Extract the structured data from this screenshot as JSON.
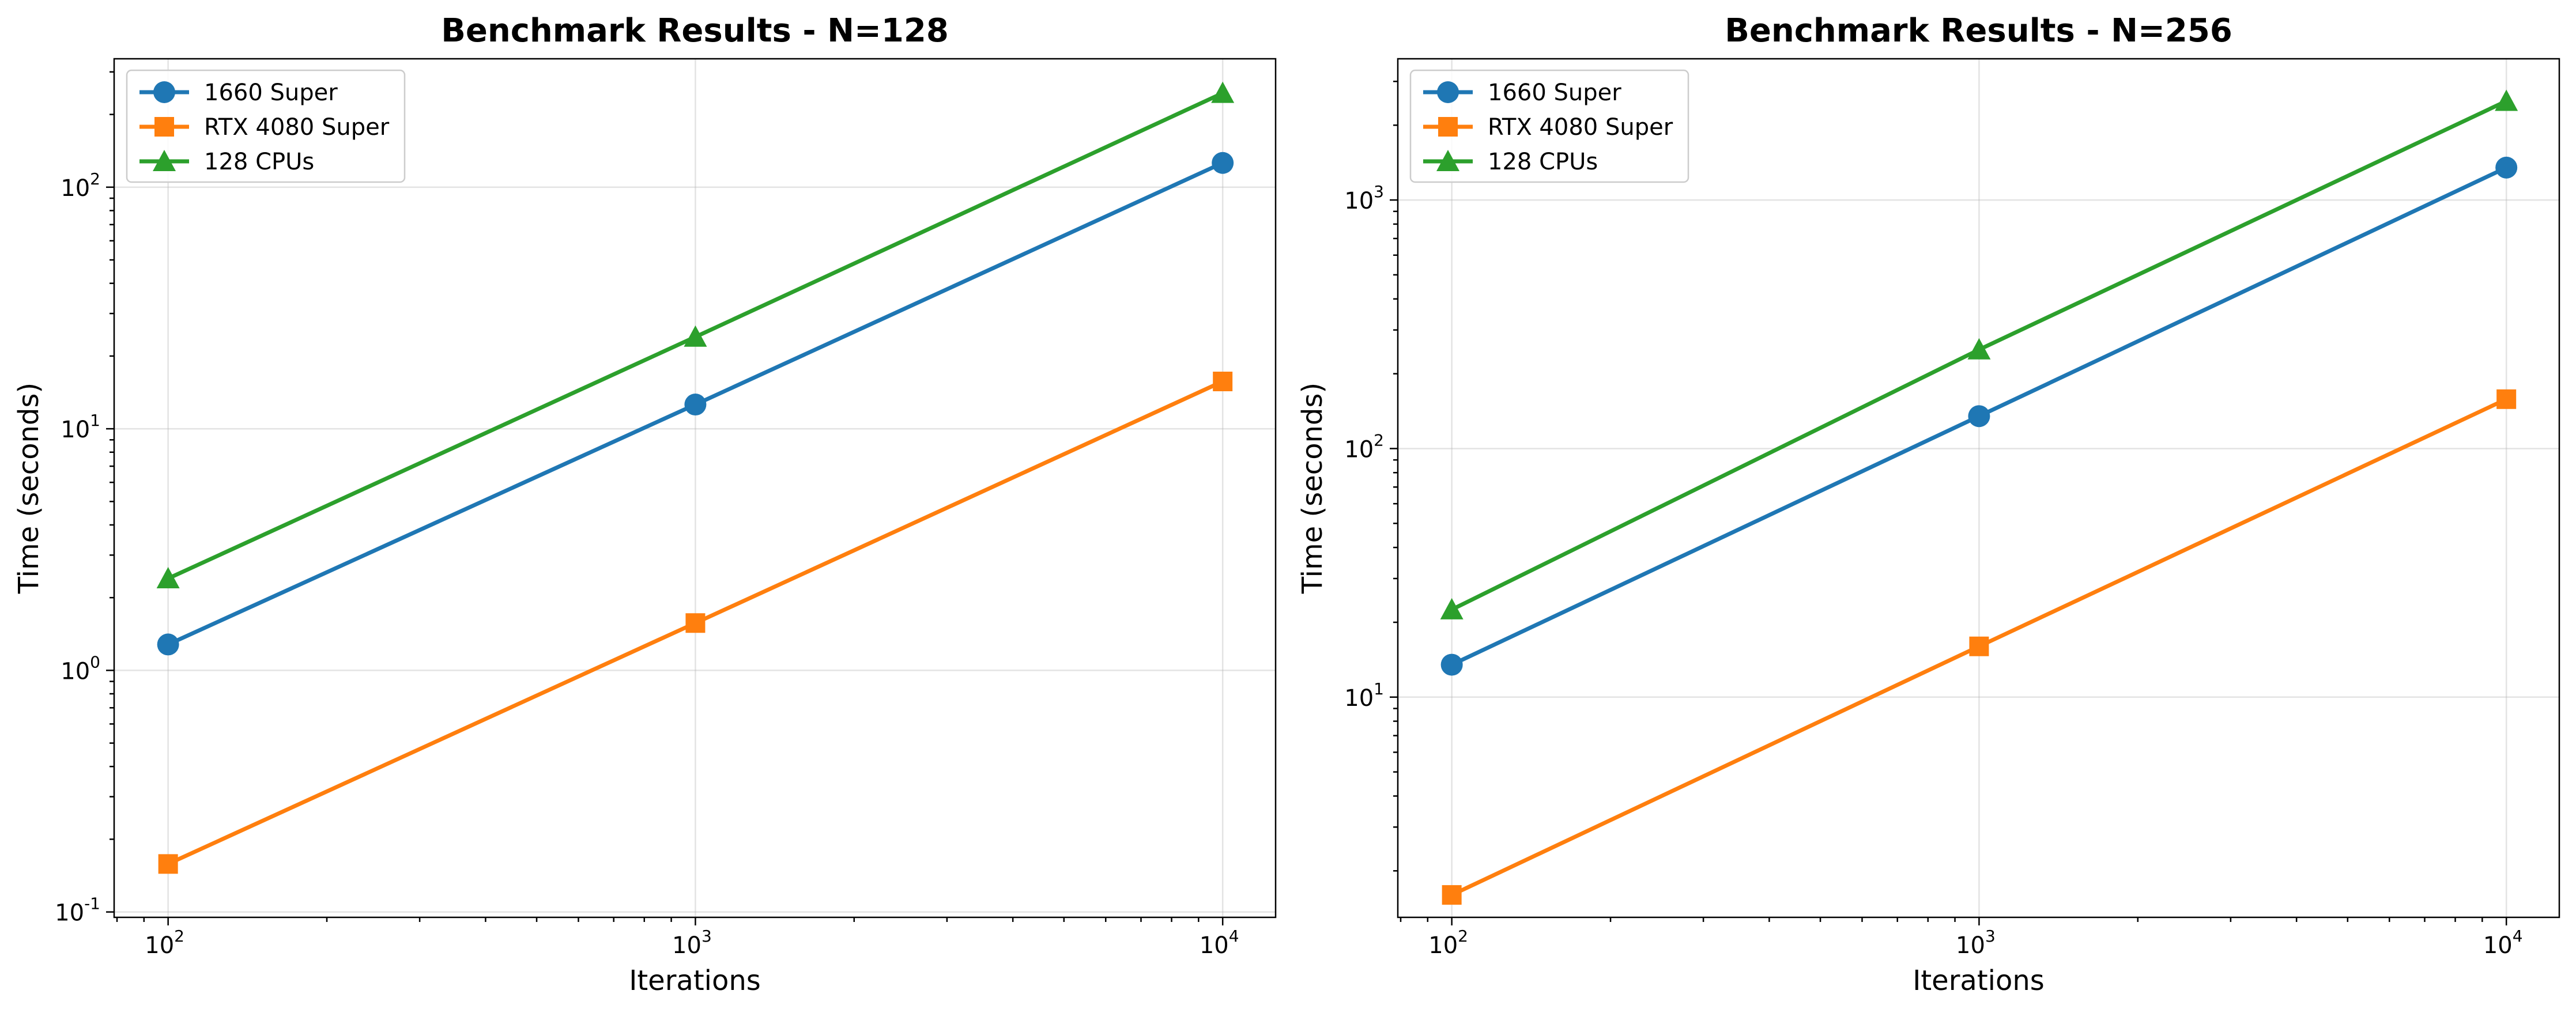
{
  "chart_data": [
    {
      "type": "line",
      "title": "Benchmark Results - N=128",
      "xlabel": "Iterations",
      "ylabel": "Time (seconds)",
      "xscale": "log",
      "yscale": "log",
      "xlim": [
        79,
        12600
      ],
      "ylim": [
        0.095,
        340
      ],
      "grid": true,
      "legend_position": "top-left",
      "x": [
        100,
        1000,
        10000
      ],
      "series": [
        {
          "name": "1660 Super",
          "marker": "circle",
          "color": "#1f77b4",
          "values": [
            1.28,
            12.6,
            126
          ]
        },
        {
          "name": "RTX 4080 Super",
          "marker": "square",
          "color": "#ff7f0e",
          "values": [
            0.158,
            1.57,
            15.7
          ]
        },
        {
          "name": "128 CPUs",
          "marker": "triangle",
          "color": "#2ca02c",
          "values": [
            2.4,
            24,
            245
          ]
        }
      ]
    },
    {
      "type": "line",
      "title": "Benchmark Results - N=256",
      "xlabel": "Iterations",
      "ylabel": "Time (seconds)",
      "xscale": "log",
      "yscale": "log",
      "xlim": [
        79,
        12600
      ],
      "ylim": [
        1.3,
        3700
      ],
      "grid": true,
      "legend_position": "top-left",
      "x": [
        100,
        1000,
        10000
      ],
      "series": [
        {
          "name": "1660 Super",
          "marker": "circle",
          "color": "#1f77b4",
          "values": [
            13.5,
            135,
            1350
          ]
        },
        {
          "name": "RTX 4080 Super",
          "marker": "square",
          "color": "#ff7f0e",
          "values": [
            1.6,
            16,
            158
          ]
        },
        {
          "name": "128 CPUs",
          "marker": "triangle",
          "color": "#2ca02c",
          "values": [
            22.5,
            250,
            2500
          ]
        }
      ]
    }
  ]
}
